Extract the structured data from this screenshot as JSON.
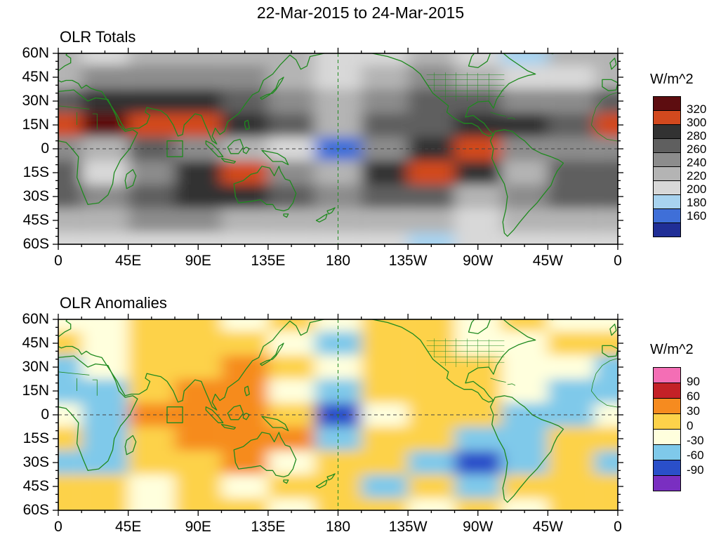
{
  "title": "22-Mar-2015 to 24-Mar-2015",
  "colors": {
    "coastline": "#1f8a1f",
    "frame": "#000000",
    "equator_dash": "#444444",
    "meridian_dash": "#1f8a1f",
    "background": "#ffffff"
  },
  "axes": {
    "lon_tick_labels": [
      "0",
      "45E",
      "90E",
      "135E",
      "180",
      "135W",
      "90W",
      "45W",
      "0"
    ],
    "lat_tick_labels": [
      "60N",
      "45N",
      "30N",
      "15N",
      "0",
      "15S",
      "30S",
      "45S",
      "60S"
    ]
  },
  "chart_data": [
    {
      "type": "heatmap",
      "panel": "top",
      "title": "OLR Totals",
      "units_label": "W/m^2",
      "lon_range_deg_east": [
        0,
        360
      ],
      "lat_range_deg": [
        -60,
        60
      ],
      "contour_levels": [
        160,
        180,
        200,
        220,
        240,
        260,
        280,
        300,
        320
      ],
      "colorbar_labels_top_to_bottom": [
        "320",
        "300",
        "280",
        "260",
        "240",
        "220",
        "200",
        "180",
        "160"
      ],
      "colors_low_to_high": [
        "#202e96",
        "#3f6fd8",
        "#a8d3ef",
        "#d8d8d8",
        "#b4b4b4",
        "#8c8c8c",
        "#5f5f5f",
        "#323232",
        "#d2491e",
        "#5d0d10"
      ],
      "map_background": "#b0b0b0",
      "grid_lon_deg_east": [
        0,
        30,
        60,
        90,
        120,
        150,
        180,
        210,
        240,
        270,
        300,
        330
      ],
      "grid_lat_deg": [
        60,
        45,
        30,
        15,
        0,
        -15,
        -30,
        -45,
        -60
      ],
      "values_wm2": [
        [
          230,
          215,
          235,
          240,
          235,
          225,
          205,
          215,
          235,
          215,
          200,
          225
        ],
        [
          240,
          245,
          250,
          255,
          245,
          230,
          210,
          230,
          245,
          225,
          205,
          210
        ],
        [
          275,
          290,
          295,
          285,
          270,
          255,
          240,
          255,
          265,
          270,
          260,
          245
        ],
        [
          315,
          330,
          320,
          305,
          295,
          265,
          235,
          265,
          280,
          290,
          285,
          265
        ],
        [
          255,
          235,
          265,
          260,
          230,
          215,
          175,
          245,
          295,
          305,
          245,
          250
        ],
        [
          265,
          215,
          255,
          285,
          305,
          245,
          235,
          295,
          315,
          285,
          235,
          275
        ],
        [
          275,
          245,
          270,
          285,
          295,
          265,
          250,
          265,
          275,
          240,
          255,
          270
        ],
        [
          235,
          240,
          245,
          250,
          240,
          230,
          235,
          240,
          230,
          215,
          230,
          235
        ],
        [
          215,
          210,
          215,
          220,
          212,
          208,
          210,
          205,
          200,
          205,
          212,
          215
        ]
      ]
    },
    {
      "type": "heatmap",
      "panel": "bottom",
      "title": "OLR Anomalies",
      "units_label": "W/m^2",
      "lon_range_deg_east": [
        0,
        360
      ],
      "lat_range_deg": [
        -60,
        60
      ],
      "contour_levels": [
        -90,
        -60,
        -30,
        0,
        30,
        60,
        90
      ],
      "colorbar_labels_top_to_bottom": [
        "90",
        "60",
        "30",
        "0",
        "-30",
        "-60",
        "-90"
      ],
      "colors_low_to_high": [
        "#7a2fc1",
        "#2a4fc9",
        "#7fc9ea",
        "#ffffdd",
        "#fdd24a",
        "#f68b1f",
        "#c42127",
        "#f46eb5"
      ],
      "map_background": "#fdf8d8",
      "grid_lon_deg_east": [
        0,
        30,
        60,
        90,
        120,
        150,
        180,
        210,
        240,
        270,
        300,
        330
      ],
      "grid_lat_deg": [
        60,
        45,
        30,
        15,
        0,
        -15,
        -30,
        -45,
        -60
      ],
      "values_wm2": [
        [
          0,
          -15,
          10,
          10,
          -10,
          15,
          -25,
          10,
          15,
          -15,
          5,
          0
        ],
        [
          15,
          -25,
          15,
          20,
          25,
          -15,
          -35,
          25,
          15,
          -25,
          -15,
          20
        ],
        [
          -45,
          -20,
          15,
          25,
          35,
          10,
          -25,
          15,
          25,
          30,
          -15,
          -25
        ],
        [
          -55,
          -35,
          25,
          45,
          35,
          -15,
          -45,
          10,
          30,
          20,
          -25,
          -30
        ],
        [
          -25,
          -45,
          35,
          55,
          40,
          15,
          -75,
          -25,
          10,
          20,
          -45,
          -30
        ],
        [
          15,
          -55,
          25,
          35,
          55,
          35,
          -35,
          10,
          25,
          -35,
          -55,
          25
        ],
        [
          -30,
          -45,
          15,
          25,
          35,
          -25,
          15,
          25,
          -45,
          -65,
          -30,
          15
        ],
        [
          10,
          25,
          -15,
          10,
          -25,
          15,
          25,
          -35,
          10,
          -45,
          25,
          10
        ],
        [
          5,
          10,
          -10,
          5,
          10,
          -15,
          10,
          5,
          -10,
          10,
          -5,
          5
        ]
      ]
    }
  ]
}
